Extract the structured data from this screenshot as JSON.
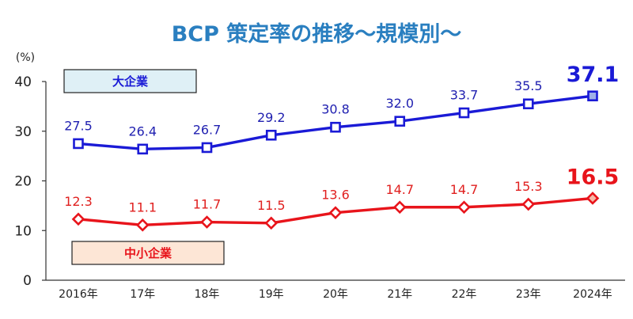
{
  "chart_data": {
    "type": "line",
    "title": "BCP 策定率の推移～規模別～",
    "y_unit_label": "(%)",
    "ylim": [
      0,
      40
    ],
    "y_ticks": [
      0,
      10,
      20,
      30,
      40
    ],
    "grid": false,
    "categories": [
      "2016年",
      "17年",
      "18年",
      "19年",
      "20年",
      "21年",
      "22年",
      "23年",
      "2024年"
    ],
    "series": [
      {
        "name": "大企業",
        "color": "#1a1ad6",
        "label_color": "#1f1fb0",
        "marker": "square",
        "values": [
          27.5,
          26.4,
          26.7,
          29.2,
          30.8,
          32.0,
          33.7,
          35.5,
          37.1
        ],
        "labels": [
          "27.5",
          "26.4",
          "26.7",
          "29.2",
          "30.8",
          "32.0",
          "33.7",
          "35.5",
          "37.1"
        ],
        "legend_fill": "#dff0f6"
      },
      {
        "name": "中小企業",
        "color": "#e8141b",
        "label_color": "#e0201f",
        "marker": "diamond",
        "values": [
          12.3,
          11.1,
          11.7,
          11.5,
          13.6,
          14.7,
          14.7,
          15.3,
          16.5
        ],
        "labels": [
          "12.3",
          "11.1",
          "11.7",
          "11.5",
          "13.6",
          "14.7",
          "14.7",
          "15.3",
          "16.5"
        ],
        "legend_fill": "#fde6d6"
      }
    ],
    "title_color": "#2a7fc0"
  }
}
